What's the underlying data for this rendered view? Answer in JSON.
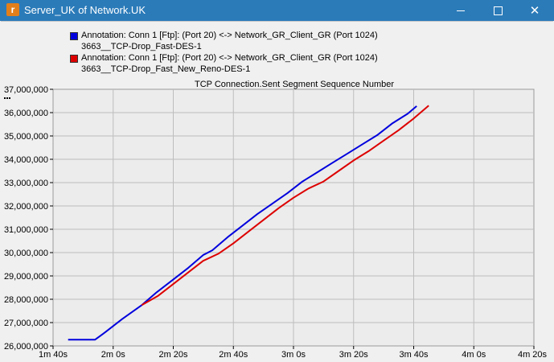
{
  "window": {
    "title": "Server_UK of Network.UK",
    "icon": "opnet-app-icon",
    "minimize_icon": "minimize-icon",
    "maximize_icon": "maximize-icon",
    "close_icon": "close-icon",
    "titlebar_color": "#2b7bb9"
  },
  "chart_data": {
    "type": "line",
    "title": "TCP Connection.Sent Segment Sequence Number",
    "xlabel": "",
    "ylabel": "",
    "x_unit": "seconds",
    "xlim": [
      100,
      260
    ],
    "ylim": [
      26000000,
      37000000
    ],
    "x_ticks": [
      {
        "value": 100,
        "label": "1m 40s"
      },
      {
        "value": 120,
        "label": "2m 0s"
      },
      {
        "value": 140,
        "label": "2m 20s"
      },
      {
        "value": 160,
        "label": "2m 40s"
      },
      {
        "value": 180,
        "label": "3m 0s"
      },
      {
        "value": 200,
        "label": "3m 20s"
      },
      {
        "value": 220,
        "label": "3m 40s"
      },
      {
        "value": 240,
        "label": "4m 0s"
      },
      {
        "value": 260,
        "label": "4m 20s"
      }
    ],
    "y_ticks": [
      {
        "value": 26000000,
        "label": "26,000,000"
      },
      {
        "value": 27000000,
        "label": "27,000,000"
      },
      {
        "value": 28000000,
        "label": "28,000,000"
      },
      {
        "value": 29000000,
        "label": "29,000,000"
      },
      {
        "value": 30000000,
        "label": "30,000,000"
      },
      {
        "value": 31000000,
        "label": "31,000,000"
      },
      {
        "value": 32000000,
        "label": "32,000,000"
      },
      {
        "value": 33000000,
        "label": "33,000,000"
      },
      {
        "value": 34000000,
        "label": "34,000,000"
      },
      {
        "value": 35000000,
        "label": "35,000,000"
      },
      {
        "value": 36000000,
        "label": "36,000,000"
      },
      {
        "value": 37000000,
        "label": "37,000,000"
      }
    ],
    "grid": true,
    "legend_position": "top-left",
    "plot_background": "#ececec",
    "series": [
      {
        "name": "Annotation: Conn 1 [Ftp]: (Port 20) <-> Network_GR_Client_GR (Port 1024)",
        "name_line2": "3663__TCP-Drop_Fast-DES-1",
        "color": "#0000dd",
        "points": [
          [
            105,
            26270000
          ],
          [
            114,
            26270000
          ],
          [
            117.5,
            26600000
          ],
          [
            123,
            27150000
          ],
          [
            129.5,
            27750000
          ],
          [
            134.5,
            28300000
          ],
          [
            140,
            28850000
          ],
          [
            145,
            29350000
          ],
          [
            150,
            29900000
          ],
          [
            153,
            30100000
          ],
          [
            158,
            30650000
          ],
          [
            163,
            31150000
          ],
          [
            168,
            31650000
          ],
          [
            173,
            32100000
          ],
          [
            178,
            32550000
          ],
          [
            183,
            33050000
          ],
          [
            188,
            33450000
          ],
          [
            193,
            33850000
          ],
          [
            198,
            34250000
          ],
          [
            203,
            34650000
          ],
          [
            208,
            35050000
          ],
          [
            213,
            35550000
          ],
          [
            218,
            35950000
          ],
          [
            221,
            36280000
          ]
        ]
      },
      {
        "name": "Annotation: Conn 1 [Ftp]: (Port 20) <-> Network_GR_Client_GR (Port 1024)",
        "name_line2": "3663__TCP-Drop_Fast_New_Reno-DES-1",
        "color": "#dd0000",
        "points": [
          [
            129.5,
            27750000
          ],
          [
            135,
            28150000
          ],
          [
            140,
            28650000
          ],
          [
            145,
            29150000
          ],
          [
            150,
            29650000
          ],
          [
            155,
            29950000
          ],
          [
            160,
            30400000
          ],
          [
            165,
            30900000
          ],
          [
            170,
            31400000
          ],
          [
            175,
            31900000
          ],
          [
            180,
            32350000
          ],
          [
            185,
            32750000
          ],
          [
            190,
            33050000
          ],
          [
            195,
            33500000
          ],
          [
            200,
            33950000
          ],
          [
            205,
            34350000
          ],
          [
            210,
            34800000
          ],
          [
            215,
            35250000
          ],
          [
            220,
            35750000
          ],
          [
            225,
            36300000
          ]
        ]
      }
    ]
  }
}
